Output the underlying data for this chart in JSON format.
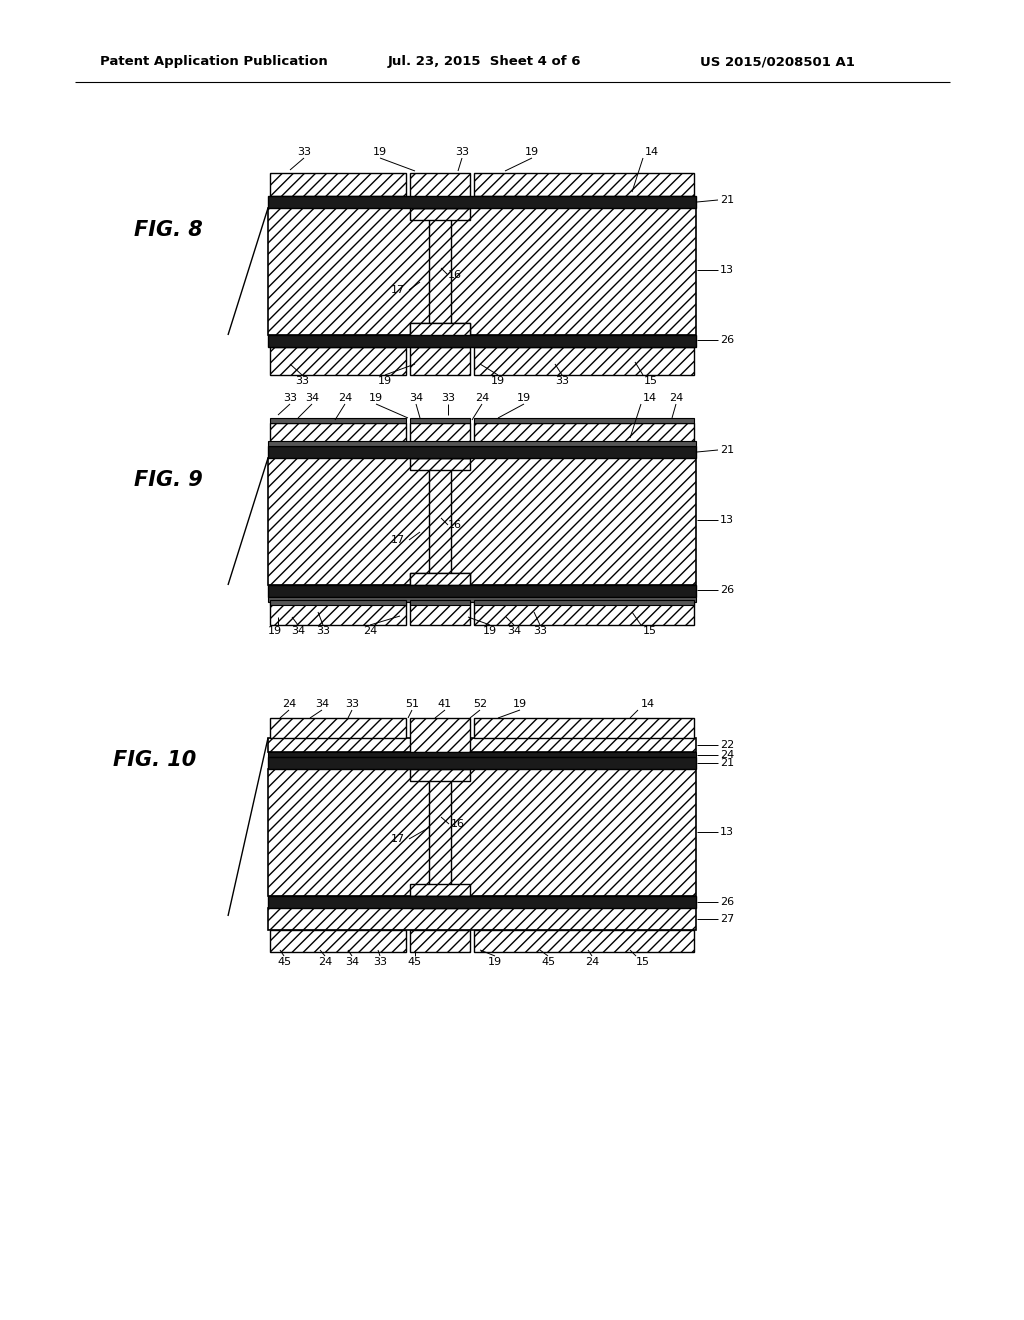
{
  "header_left": "Patent Application Publication",
  "header_mid": "Jul. 23, 2015  Sheet 4 of 6",
  "header_right": "US 2015/0208501 A1",
  "bg_color": "#ffffff",
  "fig_labels": [
    "FIG. 8",
    "FIG. 9",
    "FIG. 10"
  ]
}
